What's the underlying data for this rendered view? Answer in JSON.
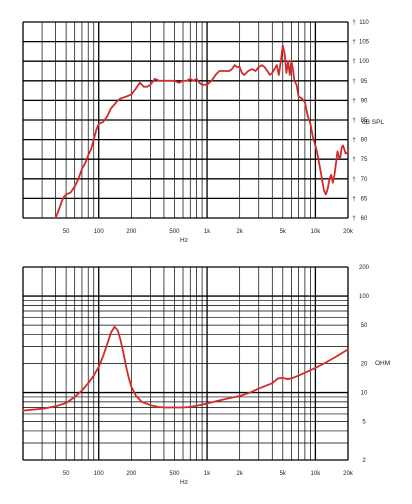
{
  "colors": {
    "curve": "#d42a2a",
    "grid": "#000000",
    "background": "#ffffff",
    "text": "#222222"
  },
  "chart_data": [
    {
      "type": "line",
      "title": "",
      "xlabel": "Hz",
      "ylabel": "dB SPL",
      "x_scale": "log",
      "xlim": [
        20,
        20000
      ],
      "ylim": [
        60,
        110
      ],
      "x_tick_labels": [
        {
          "value": 50,
          "label": "50"
        },
        {
          "value": 100,
          "label": "100"
        },
        {
          "value": 200,
          "label": "200"
        },
        {
          "value": 500,
          "label": "500"
        },
        {
          "value": 1000,
          "label": "1k"
        },
        {
          "value": 2000,
          "label": "2k"
        },
        {
          "value": 5000,
          "label": "5k"
        },
        {
          "value": 10000,
          "label": "10k"
        },
        {
          "value": 20000,
          "label": "20k"
        }
      ],
      "y_tick_labels": [
        {
          "value": 110,
          "label": "110"
        },
        {
          "value": 105,
          "label": "105"
        },
        {
          "value": 100,
          "label": "100"
        },
        {
          "value": 95,
          "label": "95"
        },
        {
          "value": 90,
          "label": "90"
        },
        {
          "value": 85,
          "label": "85"
        },
        {
          "value": 80,
          "label": "80"
        },
        {
          "value": 75,
          "label": "75"
        },
        {
          "value": 70,
          "label": "70"
        },
        {
          "value": 65,
          "label": "65"
        },
        {
          "value": 60,
          "label": "60"
        }
      ],
      "grid": true,
      "series": [
        {
          "x": [
            40,
            42,
            44,
            46,
            48,
            50,
            55,
            60,
            65,
            70,
            75,
            80,
            85,
            90,
            95,
            100,
            110,
            120,
            130,
            140,
            150,
            160,
            180,
            200,
            220,
            240,
            260,
            280,
            300,
            330,
            360,
            400,
            450,
            500,
            550,
            600,
            650,
            700,
            750,
            800,
            850,
            900,
            950,
            1000,
            1100,
            1200,
            1300,
            1400,
            1500,
            1600,
            1700,
            1800,
            1900,
            2000,
            2100,
            2200,
            2400,
            2600,
            2800,
            3000,
            3200,
            3400,
            3600,
            3800,
            4000,
            4200,
            4400,
            4600,
            4800,
            5000,
            5200,
            5400,
            5600,
            5800,
            6000,
            6200,
            6400,
            6700,
            7000,
            7500,
            8000,
            8500,
            9000,
            9500,
            10000,
            10500,
            11000,
            11500,
            12000,
            12500,
            13000,
            13500,
            14000,
            14500,
            15000,
            15500,
            16000,
            16500,
            17000,
            17500,
            18000,
            18500,
            19000,
            19500,
            20000
          ],
          "y": [
            60,
            61.5,
            63,
            64.5,
            65.5,
            66,
            66.5,
            68,
            70,
            72.5,
            74,
            76,
            77.5,
            80,
            82.5,
            84,
            84.5,
            86,
            88,
            89,
            90,
            90.5,
            91,
            91.5,
            93,
            94.5,
            93.5,
            93.5,
            94,
            95.5,
            95,
            95,
            95,
            95,
            94.5,
            95,
            95,
            95.5,
            95,
            95.5,
            94.5,
            94,
            94,
            94,
            95,
            96.5,
            97.5,
            97.5,
            97.5,
            97.5,
            98,
            99,
            98.5,
            98.5,
            97,
            96.5,
            97.5,
            98,
            97.5,
            98.5,
            99,
            98.5,
            97.5,
            96.5,
            97,
            98,
            99,
            96.5,
            100,
            104,
            102,
            97,
            100,
            96.5,
            100,
            98,
            95,
            94,
            91,
            90.5,
            89.5,
            86,
            84,
            80.5,
            78.5,
            76,
            73,
            70,
            67,
            66,
            67.5,
            70,
            71,
            69,
            71,
            74,
            77,
            75.5,
            75.5,
            78,
            78.5,
            77.5,
            76.5,
            76.5,
            77
          ]
        }
      ]
    },
    {
      "type": "line",
      "title": "",
      "xlabel": "Hz",
      "ylabel": "OHM",
      "x_scale": "log",
      "y_scale": "log",
      "xlim": [
        20,
        20000
      ],
      "ylim": [
        2,
        200
      ],
      "x_tick_labels": [
        {
          "value": 50,
          "label": "50"
        },
        {
          "value": 100,
          "label": "100"
        },
        {
          "value": 200,
          "label": "200"
        },
        {
          "value": 500,
          "label": "500"
        },
        {
          "value": 1000,
          "label": "1k"
        },
        {
          "value": 2000,
          "label": "2k"
        },
        {
          "value": 5000,
          "label": "5k"
        },
        {
          "value": 10000,
          "label": "10k"
        },
        {
          "value": 20000,
          "label": "20k"
        }
      ],
      "y_tick_labels": [
        {
          "value": 200,
          "label": "200"
        },
        {
          "value": 100,
          "label": "100"
        },
        {
          "value": 50,
          "label": "50"
        },
        {
          "value": 20,
          "label": "20"
        },
        {
          "value": 10,
          "label": "10"
        },
        {
          "value": 5,
          "label": "5"
        },
        {
          "value": 2,
          "label": "2"
        }
      ],
      "grid": true,
      "series": [
        {
          "x": [
            20,
            30,
            40,
            50,
            60,
            70,
            80,
            90,
            100,
            110,
            120,
            130,
            140,
            150,
            160,
            170,
            180,
            190,
            200,
            220,
            250,
            300,
            350,
            400,
            500,
            600,
            700,
            800,
            900,
            1000,
            1200,
            1500,
            2000,
            2500,
            3000,
            4000,
            4500,
            5000,
            5500,
            6000,
            7000,
            8000,
            10000,
            12000,
            15000,
            20000
          ],
          "y": [
            6.5,
            6.8,
            7.2,
            7.8,
            9,
            10.5,
            12.5,
            15,
            18.5,
            24,
            32,
            42,
            48,
            44,
            34,
            25,
            18,
            14,
            11.5,
            9.3,
            8,
            7.4,
            7.1,
            7,
            7,
            7,
            7.1,
            7.3,
            7.5,
            7.7,
            8.1,
            8.6,
            9.2,
            10,
            11,
            12.5,
            14,
            14.2,
            13.8,
            14,
            15,
            16,
            18,
            20,
            23,
            28
          ]
        }
      ]
    }
  ]
}
